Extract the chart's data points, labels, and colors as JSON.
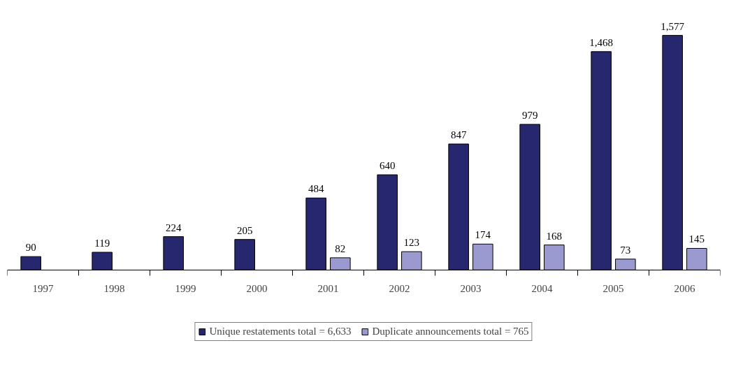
{
  "chart_data": {
    "type": "bar",
    "categories": [
      "1997",
      "1998",
      "1999",
      "2000",
      "2001",
      "2002",
      "2003",
      "2004",
      "2005",
      "2006"
    ],
    "series": [
      {
        "name": "Unique restatements total = 6,633",
        "color": "#27276f",
        "values": [
          90,
          119,
          224,
          205,
          484,
          640,
          847,
          979,
          1468,
          1577
        ],
        "value_labels": [
          "90",
          "119",
          "224",
          "205",
          "484",
          "640",
          "847",
          "979",
          "1,468",
          "1,577"
        ]
      },
      {
        "name": "Duplicate announcements total = 765",
        "color": "#9a9ad0",
        "values": [
          null,
          null,
          null,
          null,
          82,
          123,
          174,
          168,
          73,
          145
        ],
        "value_labels": [
          null,
          null,
          null,
          null,
          "82",
          "123",
          "174",
          "168",
          "73",
          "145"
        ]
      }
    ],
    "legend": "bottom",
    "grid": false
  }
}
